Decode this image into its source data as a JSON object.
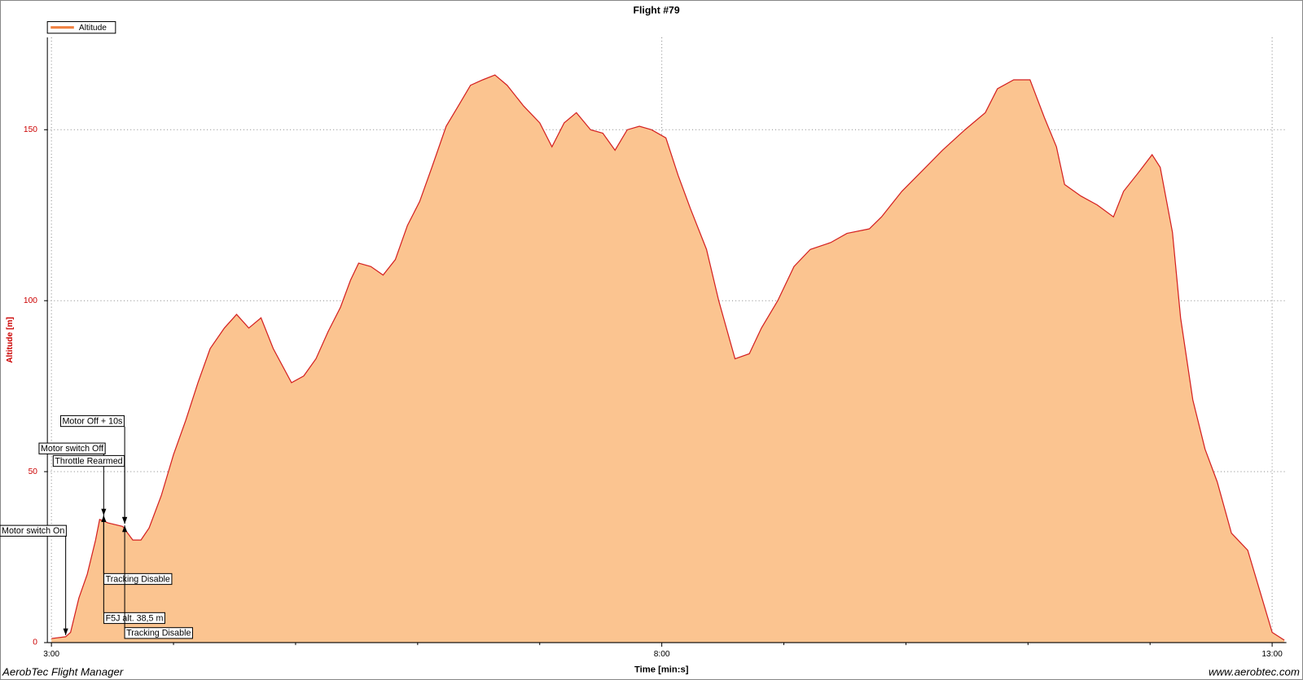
{
  "chart_data": {
    "type": "area",
    "title": "Flight #79",
    "xlabel": "Time [min:s]",
    "ylabel": "Altitude [m]",
    "footer_left": "AerobTec Flight Manager",
    "footer_right": "www.aerobtec.com",
    "xlim": [
      178,
      787
    ],
    "ylim": [
      0,
      177
    ],
    "xticks": [
      {
        "value": 180,
        "label": "3:00"
      },
      {
        "value": 480,
        "label": "8:00"
      },
      {
        "value": 780,
        "label": "13:00"
      }
    ],
    "xminorticks": [
      240,
      300,
      360,
      420,
      540,
      600,
      660,
      720
    ],
    "yticks": [
      0,
      50,
      100,
      150
    ],
    "grid": true,
    "legend": "top-left",
    "series": [
      {
        "name": "Altitude",
        "color": "#d42020",
        "fill": "#fbc490",
        "x": [
          180,
          187,
          189.4,
          193.5,
          197.6,
          201.7,
          203.7,
          207.8,
          215,
          220,
          224,
          228,
          234,
          240,
          246,
          252,
          258,
          265,
          271,
          277,
          283,
          289,
          298,
          304,
          310,
          316,
          322,
          327,
          331,
          337,
          343,
          349,
          355,
          361,
          367,
          374,
          380,
          386,
          392,
          398,
          404,
          412,
          420,
          426,
          432,
          438,
          445,
          451,
          457,
          463,
          469,
          475,
          482,
          488,
          494,
          502,
          508,
          516,
          523,
          529,
          537,
          545,
          553,
          563,
          571,
          582,
          588,
          598,
          608,
          618,
          629,
          639,
          645,
          653,
          661,
          668,
          674,
          678,
          686,
          694,
          702,
          707,
          715,
          721,
          725,
          731,
          735,
          741,
          747,
          753,
          760,
          768,
          774,
          780,
          786
        ],
        "values": [
          1.2,
          1.7,
          3,
          13,
          20,
          30,
          36,
          35,
          34,
          30,
          30,
          33.5,
          43,
          55,
          65,
          76,
          86,
          92,
          96,
          92,
          95,
          86,
          76,
          78,
          83,
          91,
          98,
          106,
          111,
          110,
          107.5,
          112,
          122,
          129,
          139,
          151,
          157,
          163,
          164.6,
          166,
          163,
          157,
          152,
          145,
          152,
          155,
          150,
          149,
          144,
          150,
          151,
          150,
          147.6,
          136.7,
          127,
          115,
          100,
          83,
          84.5,
          92,
          100,
          110,
          115,
          117,
          119.7,
          121,
          124.5,
          132,
          138,
          144,
          150,
          155,
          162,
          164.6,
          164.6,
          153.6,
          145,
          134,
          130.6,
          128,
          124.5,
          132,
          138,
          142.7,
          139,
          120,
          95,
          71,
          56.6,
          47,
          32,
          27,
          15,
          3,
          0.7
        ]
      }
    ],
    "annotations": [
      {
        "text": "Motor switch On",
        "x": 187
      },
      {
        "text": "Motor switch Off",
        "x": 205.7
      },
      {
        "text": "Throttle Rearmed",
        "x": 216
      },
      {
        "text": "Motor Off + 10s",
        "x": 216
      },
      {
        "text": "Tracking Disable",
        "x": 205.7
      },
      {
        "text": "F5J alt. 38,5 m",
        "x": 205.7
      },
      {
        "text": "Tracking Disable",
        "x": 216
      }
    ]
  }
}
